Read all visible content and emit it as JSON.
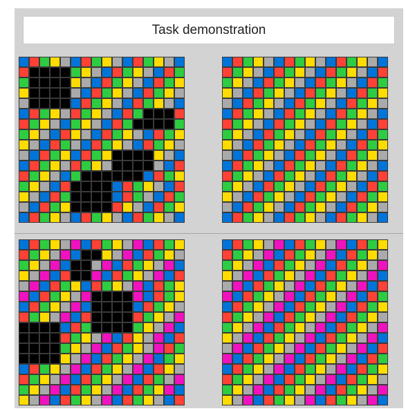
{
  "header": {
    "title": "Task demonstration"
  },
  "colors": {
    "1": "#0074d9",
    "2": "#ff4136",
    "3": "#2ecc40",
    "4": "#ffdc00",
    "5": "#aaaaaa",
    "6": "#f012be",
    "0": "#000000"
  },
  "pairs": [
    {
      "input": [
        "1234512345123451",
        "2000034512345123",
        "3000045123451234",
        "4000051234512345",
        "5000012345123451",
        "1234523451230002",
        "2345134512300003",
        "3451245123451234",
        "4512351234512345",
        "5123412340000451",
        "1234523450000512",
        "2345130000001234",
        "3451200001234512",
        "4512300001235123",
        "5123400002451234",
        "1234512345123451"
      ],
      "output": [
        "1234512345123451",
        "2345123451234512",
        "3451234512345123",
        "4512345123451234",
        "5123451234512345",
        "1234512345123451",
        "2345123451234512",
        "3451234512345123",
        "4512345123451234",
        "5123451234512345",
        "1234512345123451",
        "2345123451234512",
        "3451234512345123",
        "4512345123451234",
        "5123451234512345",
        "1234512345123451"
      ]
    },
    {
      "input": [
        "1234561234561234",
        "2345610045612345",
        "3456100561234561",
        "4561200612345612",
        "5612341234561234",
        "6123456000061234",
        "1234561000012345",
        "2345612000023456",
        "0000123000034561",
        "0000234561245612",
        "0000345612345623",
        "0000456123456134",
        "1234561234561245",
        "2345612345612356",
        "3456123456123461",
        "4561234561234512"
      ],
      "output": [
        "1234561234561234",
        "2345612345612345",
        "3456123456123456",
        "4561234561234561",
        "5612345612345612",
        "6123456123456123",
        "1234561234561234",
        "2345612345612345",
        "3456123456123456",
        "4561234561234561",
        "5612345612345612",
        "6123456123456123",
        "1234561234561234",
        "2345612345612345",
        "3456123456123456",
        "4561234561234561"
      ]
    }
  ]
}
